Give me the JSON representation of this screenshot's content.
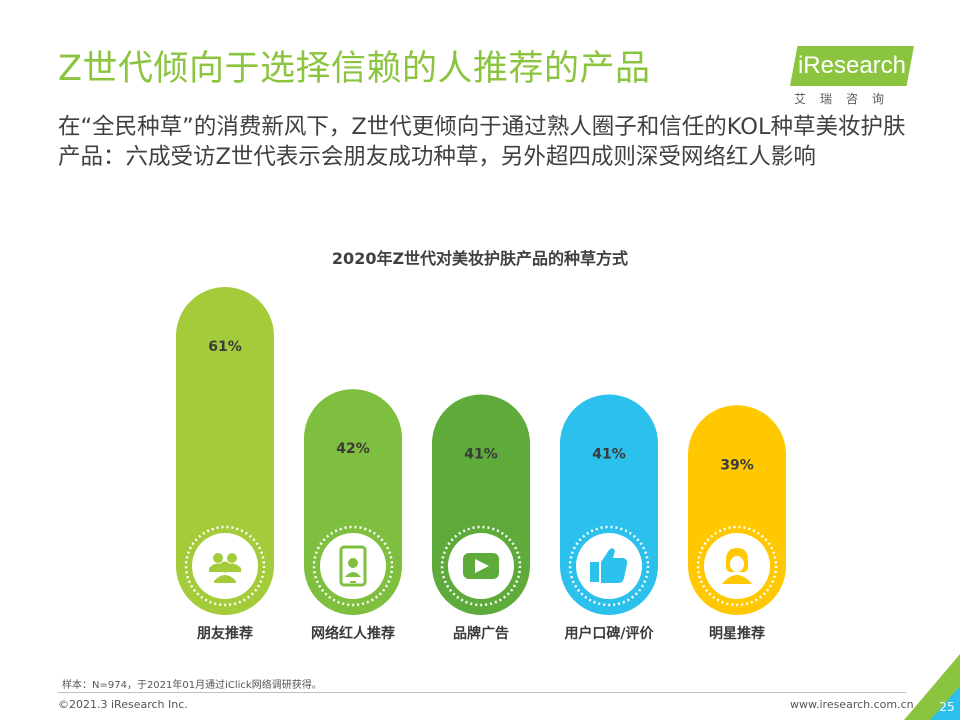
{
  "header": {
    "title": "Z世代倾向于选择信赖的人推荐的产品",
    "subtitle": "在“全民种草”的消费新风下，Z世代更倾向于通过熟人圈子和信任的KOL种草美妆护肤产品：六成受访Z世代表示会朋友成功种草，另外超四成则深受网络红人影响"
  },
  "logo": {
    "name": "iResearch",
    "sub": "艾瑞咨询"
  },
  "chart_data": {
    "type": "bar",
    "title": "2020年Z世代对美妆护肤产品的种草方式",
    "categories": [
      "朋友推荐",
      "网络红人推荐",
      "品牌广告",
      "用户口碑/评价",
      "明星推荐"
    ],
    "values": [
      61,
      42,
      41,
      41,
      39
    ],
    "value_labels": [
      "61%",
      "42%",
      "41%",
      "41%",
      "39%"
    ],
    "icons": [
      "people-group-icon",
      "smartphone-person-icon",
      "video-play-icon",
      "thumbs-up-icon",
      "star-person-icon"
    ],
    "colors": [
      "#a4cc3a",
      "#7fbf3f",
      "#5eaa3b",
      "#2cc0ec",
      "#ffc800"
    ],
    "ylim": [
      0,
      61
    ]
  },
  "footer": {
    "note": "样本：N=974，于2021年01月通过iClick网络调研获得。",
    "copyright": "©2021.3 iResearch Inc.",
    "website": "www.iresearch.com.cn",
    "page": "25"
  }
}
